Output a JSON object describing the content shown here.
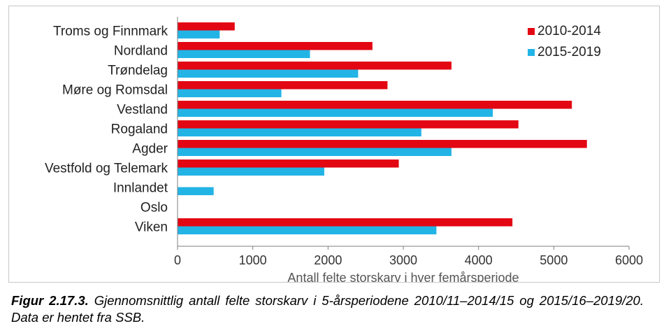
{
  "colors": {
    "series_2010": "#e30613",
    "series_2015": "#23b4e6",
    "axis": "#7f7f7f"
  },
  "chart_data": {
    "type": "bar",
    "orientation": "horizontal",
    "categories": [
      "Troms og Finnmark",
      "Nordland",
      "Trøndelag",
      "Møre og Romsdal",
      "Vestland",
      "Rogaland",
      "Agder",
      "Vestfold og Telemark",
      "Innlandet",
      "Oslo",
      "Viken"
    ],
    "series": [
      {
        "name": "2010-2014",
        "color": "#e30613",
        "values": [
          760,
          2590,
          3640,
          2790,
          5240,
          4530,
          5440,
          2940,
          0,
          0,
          4450
        ]
      },
      {
        "name": "2015-2019",
        "color": "#23b4e6",
        "values": [
          560,
          1760,
          2400,
          1380,
          4190,
          3240,
          3640,
          1950,
          480,
          0,
          3440
        ]
      }
    ],
    "xlim": [
      0,
      6000
    ],
    "xticks": [
      "0",
      "1000",
      "2000",
      "3000",
      "4000",
      "5000",
      "6000"
    ],
    "xlabel": "Antall felte storskarv i hver femårsperiode",
    "ylabel": "",
    "legend_position": "top-right",
    "grid": false
  },
  "caption": {
    "lead": "Figur 2.17.3.",
    "text": " Gjennomsnittlig antall felte storskarv i 5-årsperiodene 2010/11–2014/15 og 2015/16–2019/20. Data er hentet fra SSB."
  }
}
